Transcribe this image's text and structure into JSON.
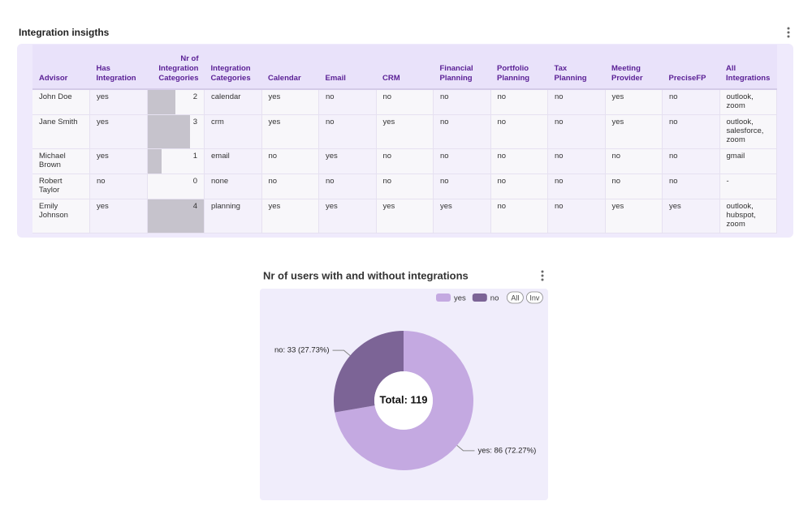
{
  "table_section": {
    "title": "Integration insigths",
    "table": {
      "headers": [
        "Advisor",
        "Has Integration",
        "Nr of Integration Categories",
        "Integration Categories",
        "Calendar",
        "Email",
        "CRM",
        "Financial Planning",
        "Portfolio Planning",
        "Tax Planning",
        "Meeting Provider",
        "PreciseFP",
        "All Integrations"
      ],
      "rows": [
        [
          "John Doe",
          "yes",
          2,
          "calendar",
          "yes",
          "no",
          "no",
          "no",
          "no",
          "no",
          "yes",
          "no",
          "outlook, zoom"
        ],
        [
          "Jane Smith",
          "yes",
          3,
          "crm",
          "yes",
          "no",
          "yes",
          "no",
          "no",
          "no",
          "yes",
          "no",
          "outlook, salesforce, zoom"
        ],
        [
          "Michael Brown",
          "yes",
          1,
          "email",
          "no",
          "yes",
          "no",
          "no",
          "no",
          "no",
          "no",
          "no",
          "gmail"
        ],
        [
          "Robert Taylor",
          "no",
          0,
          "none",
          "no",
          "no",
          "no",
          "no",
          "no",
          "no",
          "no",
          "no",
          "-"
        ],
        [
          "Emily Johnson",
          "yes",
          4,
          "planning",
          "yes",
          "yes",
          "yes",
          "yes",
          "no",
          "no",
          "yes",
          "yes",
          "outlook, hubspot, zoom"
        ]
      ]
    }
  },
  "chart_data": {
    "type": "donut",
    "title": "Nr of users with and without integrations",
    "categories": [
      "yes",
      "no"
    ],
    "values": [
      86,
      33
    ],
    "value_labels": [
      "yes: 86 (72.27%)",
      "no: 33 (27.73%)"
    ],
    "colors": [
      "#c4a9e1",
      "#7c6496"
    ],
    "center_label": "Total: 119",
    "legend_buttons": [
      "All",
      "Inv"
    ]
  }
}
